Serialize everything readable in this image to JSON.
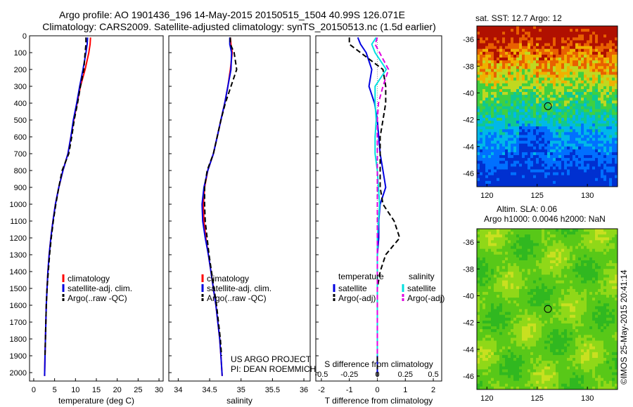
{
  "header": {
    "line1": "Argo profile: AO 1901436_196 14-May-2015 20150515_1504 40.99S 126.071E",
    "line2": "Climatology: CARS2009. Satellite-adjusted climatology: synTS_20150513.nc (1.5d earlier)"
  },
  "credit": "©IMOS 25-May-2015 20:41:14",
  "project": {
    "line1": "US ARGO PROJECT",
    "line2": "PI: DEAN ROEMMICH"
  },
  "colors": {
    "climatology": "#ff0000",
    "satellite": "#0000e0",
    "argo": "#000000",
    "sal_satellite": "#00e0e0",
    "sal_argo": "#e000e0"
  },
  "chart_data": [
    {
      "type": "line",
      "panel": "temperature",
      "xlabel": "temperature (deg C)",
      "xlim": [
        -1,
        31
      ],
      "xticks": [
        "0",
        "5",
        "10",
        "15",
        "20",
        "25",
        "30"
      ],
      "ylim": [
        2050,
        0
      ],
      "yticks": [
        "0",
        "100",
        "200",
        "300",
        "400",
        "500",
        "600",
        "700",
        "800",
        "900",
        "1000",
        "1100",
        "1200",
        "1300",
        "1400",
        "1500",
        "1600",
        "1700",
        "1800",
        "1900",
        "2000"
      ],
      "legend": [
        "climatology",
        "satellite-adj. clim.",
        "Argo(..raw -QC)"
      ],
      "series": [
        {
          "name": "climatology",
          "color": "#ff0000",
          "style": "solid",
          "x": [
            13.6,
            13.5,
            13.2,
            12.3,
            11.2,
            10.4,
            9.6,
            8.9,
            8.2,
            7.0,
            6.0,
            5.2,
            4.6,
            4.1,
            3.7,
            3.4,
            3.2,
            3.0,
            2.9,
            2.8,
            2.7,
            2.6
          ],
          "y": [
            10,
            50,
            100,
            200,
            300,
            400,
            500,
            600,
            700,
            800,
            900,
            1000,
            1100,
            1200,
            1300,
            1400,
            1500,
            1600,
            1700,
            1800,
            1900,
            2020
          ]
        },
        {
          "name": "satellite-adj. clim.",
          "color": "#0000e0",
          "style": "solid",
          "x": [
            12.9,
            12.8,
            12.5,
            11.8,
            11.0,
            10.3,
            9.5,
            8.9,
            8.2,
            7.0,
            6.0,
            5.2,
            4.6,
            4.1,
            3.7,
            3.4,
            3.2,
            3.0,
            2.9,
            2.8,
            2.7,
            2.6
          ],
          "y": [
            10,
            50,
            100,
            200,
            300,
            400,
            500,
            600,
            700,
            800,
            900,
            1000,
            1100,
            1200,
            1300,
            1400,
            1500,
            1600,
            1700,
            1800,
            1900,
            2020
          ]
        },
        {
          "name": "Argo(..raw -QC)",
          "color": "#000000",
          "style": "dash",
          "x": [
            12.5,
            12.5,
            12.3,
            12.0,
            11.2,
            10.5,
            9.7,
            9.1,
            8.4,
            6.8,
            6.0,
            5.3,
            4.7,
            4.2,
            3.8,
            3.5,
            3.2,
            3.0,
            2.9,
            2.8,
            2.7
          ],
          "y": [
            10,
            50,
            100,
            200,
            300,
            400,
            500,
            600,
            700,
            800,
            900,
            1000,
            1100,
            1200,
            1300,
            1400,
            1500,
            1600,
            1700,
            1800,
            1900
          ]
        }
      ]
    },
    {
      "type": "line",
      "panel": "salinity",
      "xlabel": "salinity",
      "xlim": [
        33.85,
        36.1
      ],
      "xticks": [
        "34",
        "34.5",
        "35",
        "35.5",
        "36"
      ],
      "ylim": [
        2050,
        0
      ],
      "legend": [
        "climatology",
        "satellite-adj. clim.",
        "Argo(..raw -QC)"
      ],
      "series": [
        {
          "name": "climatology",
          "color": "#ff0000",
          "style": "solid",
          "x": [
            34.83,
            34.84,
            34.86,
            34.83,
            34.79,
            34.74,
            34.68,
            34.62,
            34.56,
            34.47,
            34.42,
            34.4,
            34.41,
            34.44,
            34.48,
            34.52,
            34.56,
            34.6,
            34.63,
            34.66,
            34.68,
            34.7
          ],
          "y": [
            10,
            50,
            100,
            200,
            300,
            400,
            500,
            600,
            700,
            800,
            900,
            1000,
            1100,
            1200,
            1300,
            1400,
            1500,
            1600,
            1700,
            1800,
            1900,
            2020
          ]
        },
        {
          "name": "satellite-adj. clim.",
          "color": "#0000e0",
          "style": "solid",
          "x": [
            34.82,
            34.82,
            34.85,
            34.84,
            34.79,
            34.74,
            34.68,
            34.62,
            34.56,
            34.47,
            34.41,
            34.38,
            34.39,
            34.43,
            34.48,
            34.52,
            34.56,
            34.6,
            34.63,
            34.66,
            34.68,
            34.7
          ],
          "y": [
            10,
            50,
            100,
            200,
            300,
            400,
            500,
            600,
            700,
            800,
            900,
            1000,
            1100,
            1200,
            1300,
            1400,
            1500,
            1600,
            1700,
            1800,
            1900,
            2020
          ]
        },
        {
          "name": "Argo(..raw -QC)",
          "color": "#000000",
          "style": "dash",
          "x": [
            34.83,
            34.83,
            34.89,
            34.93,
            34.84,
            34.75,
            34.68,
            34.62,
            34.56,
            34.46,
            34.42,
            34.42,
            34.43,
            34.46,
            34.49,
            34.53,
            34.57,
            34.61,
            34.64,
            34.67,
            34.69
          ],
          "y": [
            10,
            50,
            100,
            200,
            300,
            400,
            500,
            600,
            700,
            800,
            900,
            1000,
            1100,
            1200,
            1300,
            1400,
            1500,
            1600,
            1700,
            1800,
            1900
          ]
        }
      ]
    },
    {
      "type": "line",
      "panel": "differences",
      "xlabel": "T difference from climatology",
      "xlabel_top": "S difference from climatology",
      "xlim": [
        -2.2,
        2.3
      ],
      "xticks": [
        "-2",
        "-1",
        "0",
        "1",
        "2"
      ],
      "xticks_top": [
        "-0.5",
        "-0.25",
        "0",
        "0.25",
        "0.5"
      ],
      "ylim": [
        2050,
        0
      ],
      "legend_titles": [
        "temperature",
        "salinity"
      ],
      "legend": [
        "satellite",
        "Argo(-adj)",
        "satellite",
        "Argo(-adj)"
      ],
      "series": [
        {
          "name": "satellite",
          "color": "#0000e0",
          "style": "solid",
          "x": [
            -0.7,
            -0.6,
            -0.4,
            -0.2,
            -0.3,
            -0.1,
            0,
            0.05,
            0.1,
            0.2,
            0.3,
            0.1,
            0.05,
            0.05,
            0,
            0,
            0,
            0,
            0,
            0,
            0,
            0
          ],
          "y": [
            10,
            50,
            100,
            200,
            300,
            400,
            500,
            600,
            700,
            800,
            900,
            1000,
            1100,
            1200,
            1300,
            1400,
            1500,
            1600,
            1700,
            1800,
            1900,
            2020
          ]
        },
        {
          "name": "Argo(-adj)",
          "color": "#000000",
          "style": "dash",
          "x": [
            -1.0,
            -1.0,
            -0.6,
            0.2,
            0.3,
            0.3,
            0.2,
            0.1,
            0.1,
            0.1,
            0.1,
            0.2,
            0.6,
            0.8,
            0.3,
            0.1,
            0,
            0,
            0,
            0,
            0,
            0
          ],
          "y": [
            10,
            50,
            100,
            200,
            300,
            400,
            500,
            600,
            700,
            800,
            900,
            1000,
            1100,
            1200,
            1300,
            1400,
            1500,
            1600,
            1700,
            1800,
            1900,
            2020
          ]
        },
        {
          "name": "satellite",
          "color": "#00e0e0",
          "style": "solid",
          "x": [
            -0.01,
            -0.05,
            -0.02,
            0.08,
            -0.02,
            -0.02,
            -0.01,
            -0.02,
            -0.02,
            0,
            0.01,
            0.02,
            0.01,
            0,
            0,
            0,
            0,
            0,
            0,
            0,
            0
          ],
          "y": [
            10,
            50,
            100,
            200,
            300,
            400,
            500,
            600,
            700,
            800,
            900,
            1000,
            1100,
            1200,
            1300,
            1400,
            1500,
            1600,
            1700,
            1800,
            1900
          ]
        },
        {
          "name": "Argo(-adj)",
          "color": "#e000e0",
          "style": "dash",
          "x": [
            0.0,
            -0.02,
            0.02,
            0.1,
            0.05,
            0.01,
            0,
            0,
            0,
            0,
            0,
            0,
            0,
            0,
            0,
            0,
            0,
            0,
            0,
            0,
            0
          ],
          "y": [
            10,
            50,
            100,
            200,
            300,
            400,
            500,
            600,
            700,
            800,
            900,
            1000,
            1100,
            1200,
            1300,
            1400,
            1500,
            1600,
            1700,
            1800,
            1900
          ]
        }
      ]
    },
    {
      "type": "heatmap",
      "panel": "sst_map",
      "title": "sat. SST: 12.7 Argo: 12",
      "xticks": [
        "120",
        "125",
        "130"
      ],
      "yticks": [
        "-36",
        "-38",
        "-40",
        "-42",
        "-44",
        "-46"
      ],
      "xlim": [
        119,
        133
      ],
      "ylim": [
        -47,
        -35
      ],
      "marker": {
        "lon": 126.071,
        "lat": -40.99
      }
    },
    {
      "type": "heatmap",
      "panel": "sla_map",
      "title": "Altim. SLA: 0.06",
      "subtitle": "Argo h1000: 0.0046 h2000: NaN",
      "xticks": [
        "120",
        "125",
        "130"
      ],
      "yticks": [
        "-36",
        "-38",
        "-40",
        "-42",
        "-44",
        "-46"
      ],
      "xlim": [
        119,
        133
      ],
      "ylim": [
        -47,
        -35
      ],
      "marker": {
        "lon": 126.071,
        "lat": -40.99
      }
    }
  ]
}
